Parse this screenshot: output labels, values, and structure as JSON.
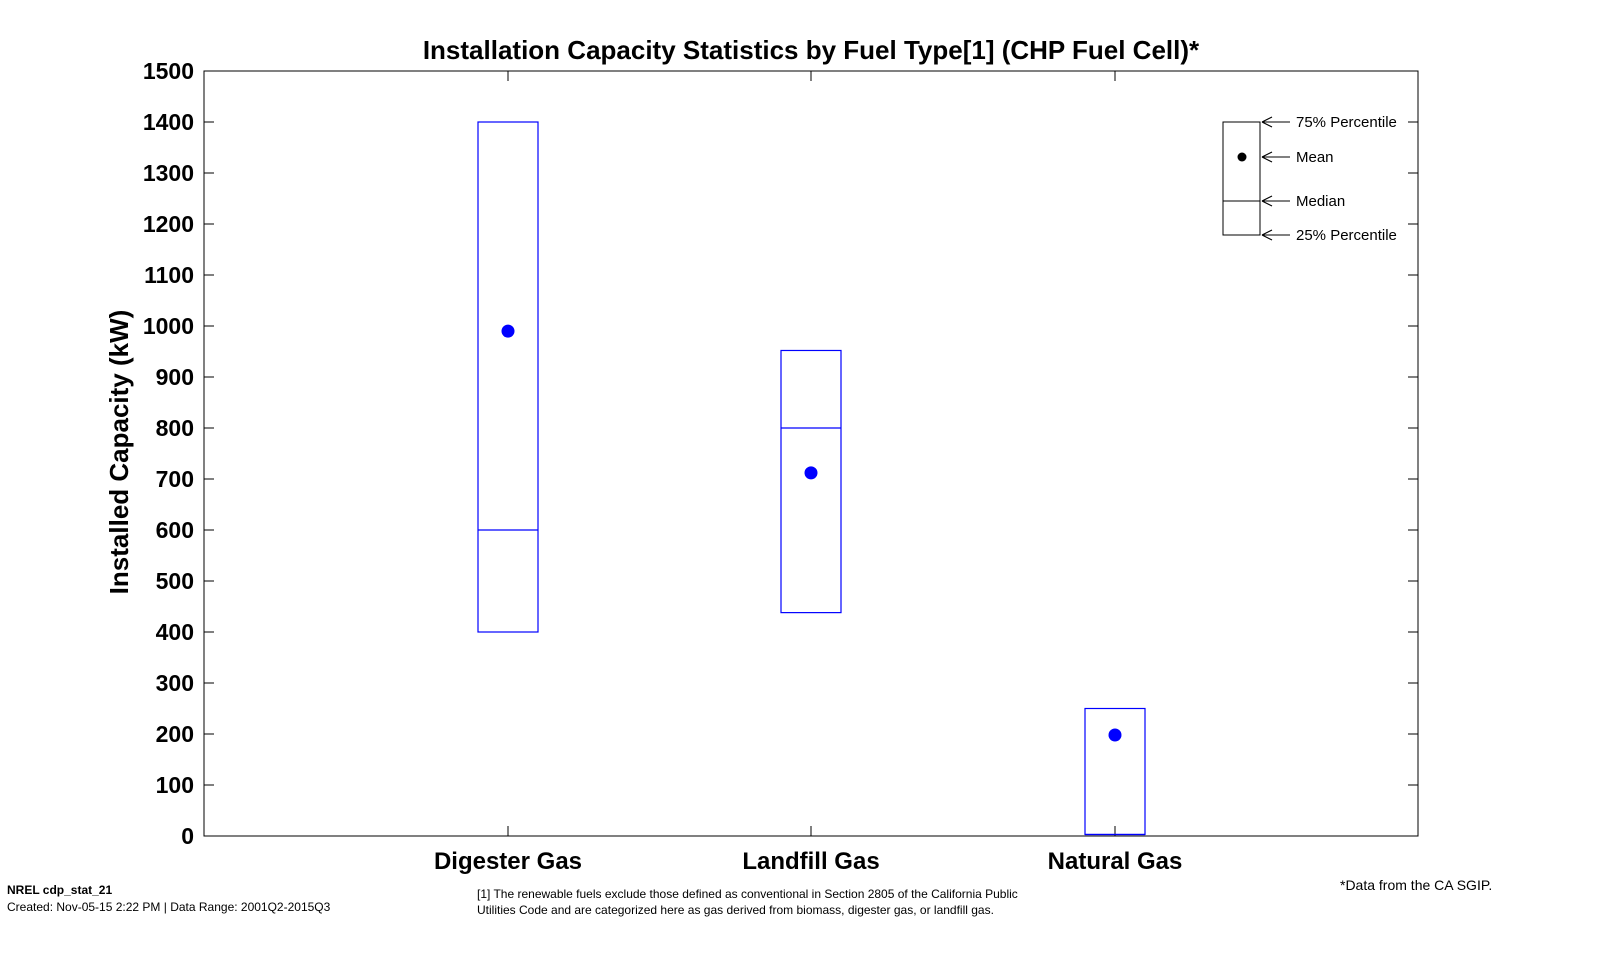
{
  "chart_data": {
    "type": "box",
    "title": "Installation Capacity Statistics by Fuel Type[1] (CHP Fuel Cell)*",
    "xlabel": "",
    "ylabel": "Installed Capacity (kW)",
    "ylim": [
      0,
      1500
    ],
    "yticks": [
      0,
      100,
      200,
      300,
      400,
      500,
      600,
      700,
      800,
      900,
      1000,
      1100,
      1200,
      1300,
      1400,
      1500
    ],
    "categories": [
      "Digester Gas",
      "Landfill Gas",
      "Natural Gas"
    ],
    "boxes": [
      {
        "category": "Digester Gas",
        "p25": 400,
        "median": 600,
        "p75": 1400,
        "mean": 990
      },
      {
        "category": "Landfill Gas",
        "p25": 438,
        "median": 800,
        "p75": 952,
        "mean": 712
      },
      {
        "category": "Natural Gas",
        "p25": 3,
        "median": 3,
        "p75": 250,
        "mean": 198
      }
    ],
    "legend": {
      "position": "top-right",
      "items": [
        "75% Percentile",
        "Mean",
        "Median",
        "25% Percentile"
      ]
    },
    "colors": {
      "box": "#0000ff",
      "mean_marker": "#0000ff",
      "axes": "#000000"
    }
  },
  "footer": {
    "id": "NREL cdp_stat_21",
    "created": "Created: Nov-05-15  2:22 PM | Data Range: 2001Q2-2015Q3",
    "footnote_line1": "[1] The renewable fuels exclude those defined as conventional in Section 2805 of the California Public",
    "footnote_line2": "Utilities Code and are categorized here  as gas derived from biomass, digester gas, or landfill gas.",
    "source": "*Data from the CA SGIP."
  }
}
